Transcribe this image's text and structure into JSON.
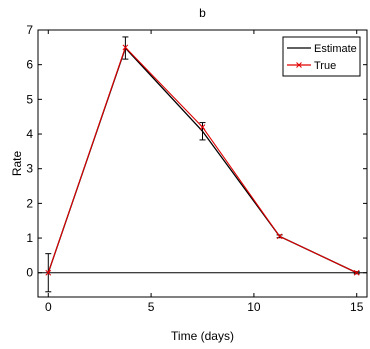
{
  "chart_data": {
    "type": "line",
    "title": "b",
    "xlabel": "Time (days)",
    "ylabel": "Rate",
    "xlim": [
      -0.5,
      15.5
    ],
    "ylim": [
      -0.7,
      7
    ],
    "xticks": [
      0,
      5,
      10,
      15
    ],
    "yticks": [
      0,
      1,
      2,
      3,
      4,
      5,
      6,
      7
    ],
    "grid": false,
    "legend_position": "top-right",
    "series": [
      {
        "name": "Estimate",
        "color": "#000000",
        "marker": "none",
        "x": [
          0,
          3.75,
          7.5,
          11.25,
          15
        ],
        "y": [
          0.0,
          6.48,
          4.08,
          1.05,
          0.0
        ],
        "error": [
          0.55,
          0.32,
          0.25,
          0.04,
          0.03
        ]
      },
      {
        "name": "True",
        "color": "#e00000",
        "marker": "x",
        "x": [
          0,
          3.75,
          7.5,
          11.25,
          15
        ],
        "y": [
          0.0,
          6.5,
          4.2,
          1.05,
          0.0
        ]
      }
    ],
    "reference_line_y": 0
  }
}
